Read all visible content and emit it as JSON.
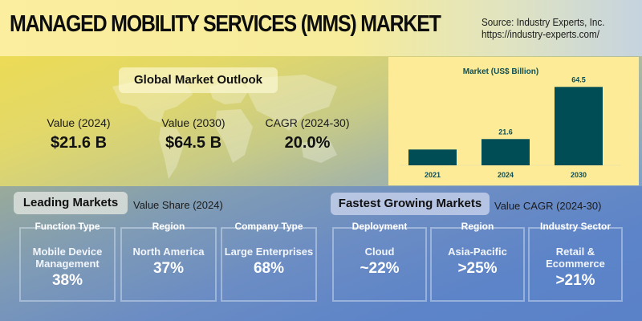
{
  "header": {
    "title": "MANAGED MOBILITY SERVICES (MMS) MARKET",
    "source_line1": "Source: Industry Experts, Inc.",
    "source_line2": "https://industry-experts.com/"
  },
  "outlook": {
    "heading": "Global Market Outlook",
    "stats": [
      {
        "label": "Value (2024)",
        "value": "$21.6 B"
      },
      {
        "label": "Value (2030)",
        "value": "$64.5 B"
      },
      {
        "label": "CAGR (2024-30)",
        "value": "20.0%"
      }
    ]
  },
  "chart_data": {
    "type": "bar",
    "title": "Market (US$ Billion)",
    "categories": [
      "2021",
      "2024",
      "2030"
    ],
    "values": [
      13,
      21.6,
      64.5
    ],
    "data_labels": [
      "",
      "21.6",
      "64.5"
    ],
    "xlabel": "",
    "ylabel": "",
    "ylim": [
      0,
      68
    ],
    "grid": false,
    "bar_color": "#004d55",
    "background": "#fdeb97"
  },
  "leading": {
    "heading": "Leading Markets",
    "subtitle": "Value Share (2024)",
    "boxes": [
      {
        "head": "Function Type",
        "name": "Mobile Device Management",
        "name_l1": "Mobile Device",
        "name_l2": "Management",
        "pct": "38%"
      },
      {
        "head": "Region",
        "name": "North America",
        "pct": "37%"
      },
      {
        "head": "Company Type",
        "name": "Large Enterprises",
        "pct": "68%"
      }
    ]
  },
  "fastest": {
    "heading": "Fastest Growing Markets",
    "subtitle": "Value CAGR (2024-30)",
    "boxes": [
      {
        "head": "Deployment",
        "name": "Cloud",
        "pct": "~22%"
      },
      {
        "head": "Region",
        "name": "Asia-Pacific",
        "pct": ">25%"
      },
      {
        "head": "Industry Sector",
        "name": "Retail & Ecommerce",
        "name_l1": "Retail &",
        "name_l2": "Ecommerce",
        "pct": ">21%"
      }
    ]
  },
  "colors": {
    "bar": "#004d55",
    "chart_text": "#0f4f57"
  }
}
